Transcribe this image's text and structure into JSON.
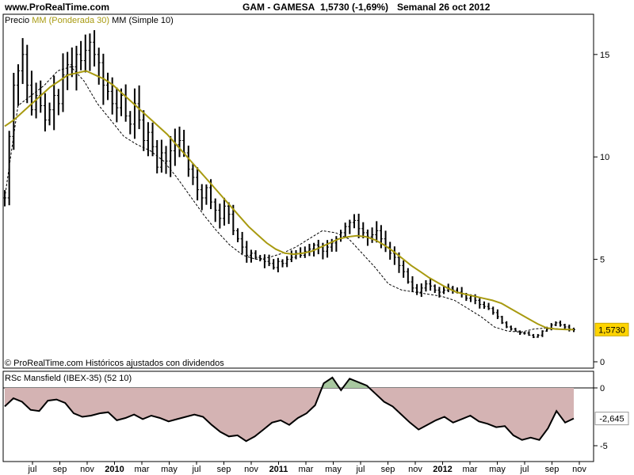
{
  "header": {
    "site": "www.ProRealTime.com",
    "title": "GAM - GAMESA",
    "quote": "1,5730 (-1,69%)",
    "period": "Semanal  26 oct 2012"
  },
  "price_panel": {
    "legend_price": "Precio",
    "legend_wma": "MM (Ponderada 30)",
    "legend_sma": "MM (Simple 10)",
    "last_label": "1,5730",
    "footer": "© ProRealTime.com  Históricos ajustados con dividendos"
  },
  "rs_panel": {
    "legend": "RSc Mansfield (IBEX-35) (52 10)",
    "last_label": "-2,645"
  },
  "colors": {
    "wma": "#a89a10",
    "last_label_bg": "#ffd400",
    "rs_fill_neg": "#d4b3b3",
    "rs_fill_pos": "#a8c8a0"
  },
  "chart_data": [
    {
      "type": "line",
      "subtype": "ohlc-weekly",
      "title": "GAM - GAMESA",
      "x_ticks": [
        "jul",
        "sep",
        "nov",
        "2010",
        "mar",
        "may",
        "jul",
        "sep",
        "nov",
        "2011",
        "mar",
        "may",
        "jul",
        "sep",
        "nov",
        "2012",
        "mar",
        "may",
        "jul",
        "sep",
        "nov"
      ],
      "y_ticks": [
        0,
        5,
        10,
        15
      ],
      "ylim": [
        0,
        16.5
      ],
      "grid": false,
      "series": [
        {
          "name": "Precio",
          "values": [
            8.0,
            11.0,
            13.5,
            14.2,
            15.0,
            13.5,
            12.3,
            13.0,
            12.5,
            11.8,
            12.3,
            13.0,
            12.6,
            14.0,
            14.5,
            14.4,
            15.0,
            14.7,
            15.2,
            15.6,
            15.0,
            14.6,
            13.5,
            13.2,
            12.6,
            12.4,
            13.0,
            12.0,
            11.6,
            12.6,
            11.8,
            10.8,
            11.2,
            10.5,
            9.5,
            10.2,
            9.8,
            10.3,
            10.6,
            10.8,
            10.2,
            9.4,
            9.0,
            8.4,
            8.0,
            8.5,
            7.8,
            7.4,
            7.0,
            7.6,
            7.2,
            6.4,
            6.0,
            5.6,
            5.2,
            5.3,
            5.1,
            5.0,
            4.9,
            4.8,
            4.6,
            4.9,
            4.8,
            5.0,
            5.1,
            5.3,
            5.2,
            5.4,
            5.5,
            5.7,
            5.6,
            5.4,
            5.6,
            5.8,
            6.0,
            6.3,
            6.6,
            6.8,
            6.9,
            6.5,
            6.3,
            6.1,
            6.2,
            6.4,
            6.0,
            5.6,
            5.3,
            5.1,
            4.7,
            4.4,
            3.9,
            3.6,
            3.4,
            3.6,
            3.8,
            3.7,
            3.5,
            3.4,
            3.5,
            3.6,
            3.5,
            3.4,
            3.3,
            3.1,
            3.2,
            3.0,
            2.8,
            2.7,
            2.6,
            2.4,
            2.2,
            1.9,
            1.7,
            1.6,
            1.5,
            1.4,
            1.4,
            1.3,
            1.2,
            1.3,
            1.5,
            1.6,
            1.8,
            1.9,
            1.8,
            1.7,
            1.6,
            1.57
          ]
        },
        {
          "name": "MM (Ponderada 30)",
          "values": [
            11.5,
            11.8,
            12.2,
            12.6,
            13.0,
            13.4,
            13.7,
            14.0,
            14.1,
            14.2,
            14.0,
            13.8,
            13.5,
            13.1,
            12.7,
            12.3,
            11.9,
            11.5,
            11.1,
            10.6,
            10.1,
            9.6,
            9.1,
            8.6,
            8.1,
            7.6,
            7.1,
            6.6,
            6.2,
            5.8,
            5.5,
            5.3,
            5.25,
            5.3,
            5.4,
            5.6,
            5.8,
            6.0,
            6.1,
            6.15,
            6.1,
            5.95,
            5.7,
            5.4,
            5.05,
            4.7,
            4.4,
            4.1,
            3.85,
            3.6,
            3.4,
            3.3,
            3.2,
            3.1,
            3.0,
            2.85,
            2.6,
            2.35,
            2.1,
            1.85,
            1.65,
            1.6,
            1.58,
            1.57
          ]
        },
        {
          "name": "MM (Simple 10)",
          "values": [
            8.0,
            12.5,
            13.0,
            13.5,
            14.2,
            14.4,
            13.7,
            12.6,
            11.8,
            11.0,
            10.6,
            10.3,
            9.8,
            9.0,
            8.1,
            7.2,
            6.4,
            5.7,
            5.2,
            5.0,
            5.1,
            5.3,
            5.6,
            6.0,
            6.4,
            6.3,
            6.0,
            5.3,
            4.6,
            3.8,
            3.5,
            3.4,
            3.3,
            3.2,
            3.0,
            2.6,
            2.2,
            1.7,
            1.5,
            1.45,
            1.6,
            1.65,
            1.6,
            1.57
          ]
        }
      ],
      "last_value": 1.573
    },
    {
      "type": "area",
      "title": "RSc Mansfield (IBEX-35) (52 10)",
      "x_ticks": [
        "jul",
        "sep",
        "nov",
        "2010",
        "mar",
        "may",
        "jul",
        "sep",
        "nov",
        "2011",
        "mar",
        "may",
        "jul",
        "sep",
        "nov",
        "2012",
        "mar",
        "may",
        "jul",
        "sep",
        "nov"
      ],
      "y_ticks": [
        0,
        -5
      ],
      "ylim": [
        -6,
        1.2
      ],
      "series": [
        {
          "name": "RSc Mansfield (IBEX-35) (52 10)",
          "values": [
            -1.6,
            -0.9,
            -1.2,
            -1.9,
            -2.0,
            -1.1,
            -1.0,
            -1.3,
            -2.2,
            -2.5,
            -2.4,
            -2.2,
            -2.1,
            -2.8,
            -2.6,
            -2.3,
            -2.7,
            -2.4,
            -2.6,
            -2.9,
            -2.7,
            -2.5,
            -2.3,
            -2.5,
            -3.2,
            -3.8,
            -4.2,
            -4.1,
            -4.6,
            -4.2,
            -3.6,
            -3.0,
            -2.8,
            -3.2,
            -2.6,
            -2.2,
            -1.5,
            0.4,
            0.9,
            -0.2,
            0.8,
            0.5,
            0.2,
            -0.5,
            -1.2,
            -1.6,
            -2.3,
            -3.0,
            -3.6,
            -3.2,
            -2.8,
            -2.5,
            -3.0,
            -2.7,
            -2.4,
            -2.9,
            -3.1,
            -3.4,
            -3.3,
            -4.1,
            -4.5,
            -4.3,
            -4.5,
            -3.5,
            -2.0,
            -3.0,
            -2.645
          ]
        }
      ],
      "last_value": -2.645
    }
  ]
}
